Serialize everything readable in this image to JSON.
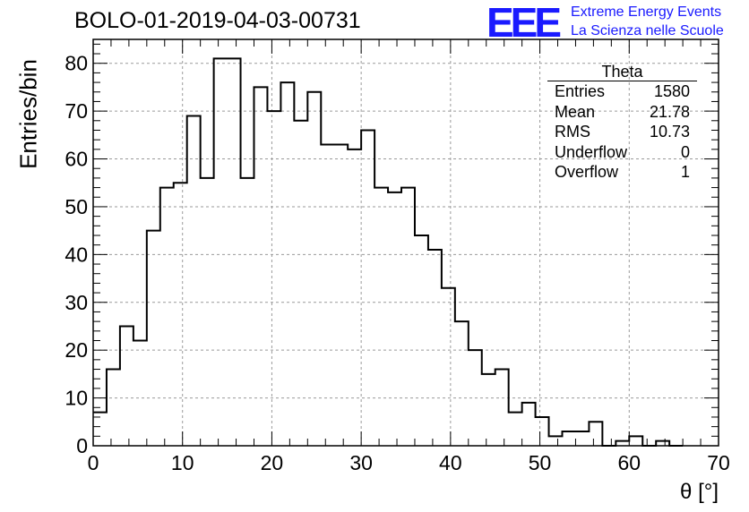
{
  "title": "BOLO-01-2019-04-03-00731",
  "logo": {
    "mark": "EEE",
    "line1": "Extreme Energy Events",
    "line2": "La Scienza nelle Scuole",
    "color": "#1a1aff"
  },
  "stats": {
    "name": "Theta",
    "rows": [
      {
        "label": "Entries",
        "value": "1580"
      },
      {
        "label": "Mean",
        "value": "21.78"
      },
      {
        "label": "RMS",
        "value": "10.73"
      },
      {
        "label": "Underflow",
        "value": "0"
      },
      {
        "label": "Overflow",
        "value": "1"
      }
    ]
  },
  "chart_data": {
    "type": "bar",
    "style": "step-histogram",
    "title": "BOLO-01-2019-04-03-00731",
    "xlabel": "θ [°]",
    "ylabel": "Entries/bin",
    "xlim": [
      0,
      70
    ],
    "ylim": [
      0,
      85
    ],
    "bin_width": 1.5,
    "bin_start": 0,
    "values": [
      7,
      16,
      25,
      22,
      45,
      54,
      55,
      69,
      56,
      81,
      81,
      56,
      75,
      70,
      76,
      68,
      74,
      63,
      63,
      62,
      66,
      54,
      53,
      54,
      44,
      41,
      33,
      26,
      20,
      15,
      16,
      7,
      9,
      6,
      2,
      3,
      3,
      5,
      0,
      1,
      2,
      0,
      1,
      0
    ],
    "xticks": [
      0,
      10,
      20,
      30,
      40,
      50,
      60,
      70
    ],
    "yticks": [
      0,
      10,
      20,
      30,
      40,
      50,
      60,
      70,
      80
    ],
    "grid": true,
    "line_color": "#000000"
  }
}
